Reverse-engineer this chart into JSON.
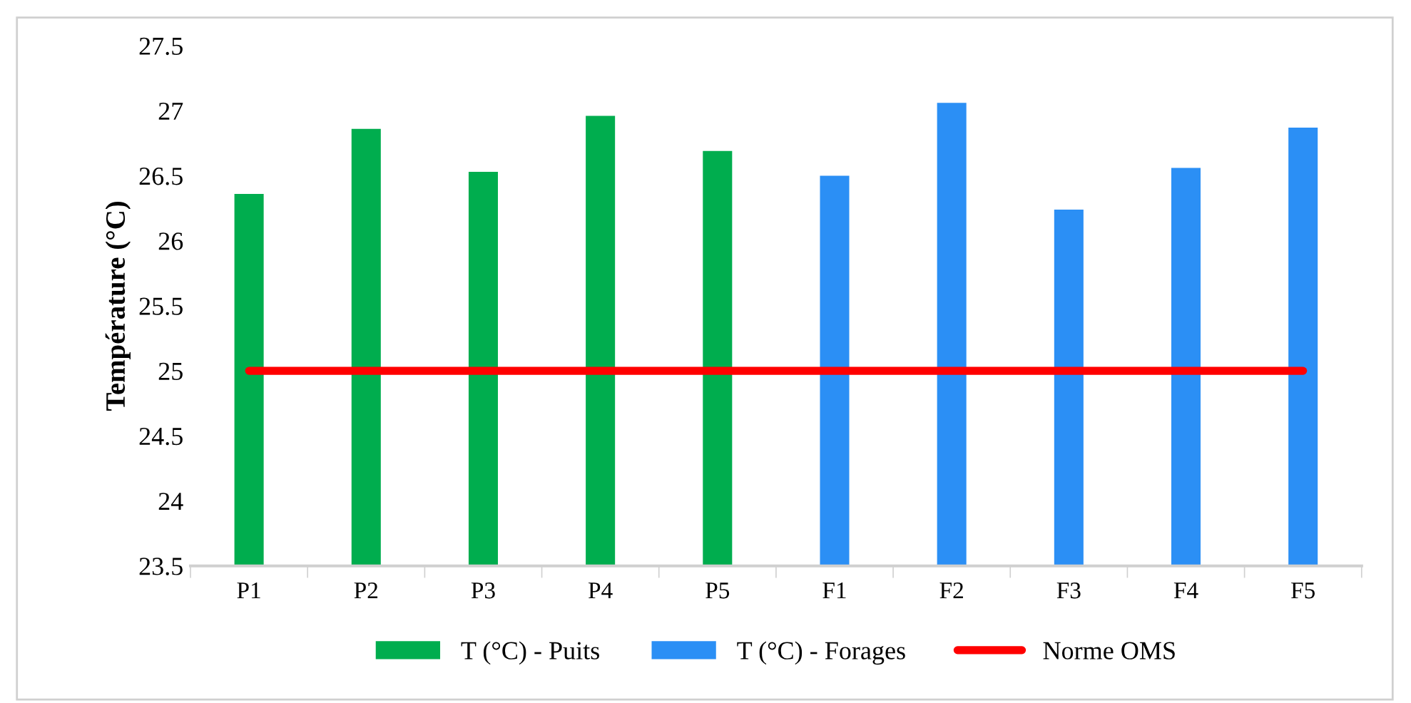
{
  "chart_data": {
    "type": "bar",
    "ylabel": "Température (°C)",
    "stacked": true,
    "categories": [
      "P1",
      "P2",
      "P3",
      "P4",
      "P5",
      "F1",
      "F2",
      "F3",
      "F4",
      "F5"
    ],
    "series": [
      {
        "name": "T (°C) - Puits",
        "color": "#00ad4e",
        "values": [
          26.36,
          26.86,
          26.53,
          26.96,
          26.69,
          null,
          null,
          null,
          null,
          null
        ]
      },
      {
        "name": "T (°C) - Forages",
        "color": "#2b8ff5",
        "values": [
          null,
          null,
          null,
          null,
          null,
          26.5,
          27.06,
          26.24,
          26.56,
          26.87
        ]
      },
      {
        "name": "Norme OMS",
        "type": "line",
        "color": "#ff0000",
        "values": [
          25,
          25,
          25,
          25,
          25,
          25,
          25,
          25,
          25,
          25
        ]
      }
    ],
    "ylim": [
      23.5,
      27.5
    ],
    "yticks": [
      23.5,
      24,
      24.5,
      25,
      25.5,
      26,
      26.5,
      27,
      27.5
    ],
    "grid": false,
    "legend": "bottom"
  }
}
